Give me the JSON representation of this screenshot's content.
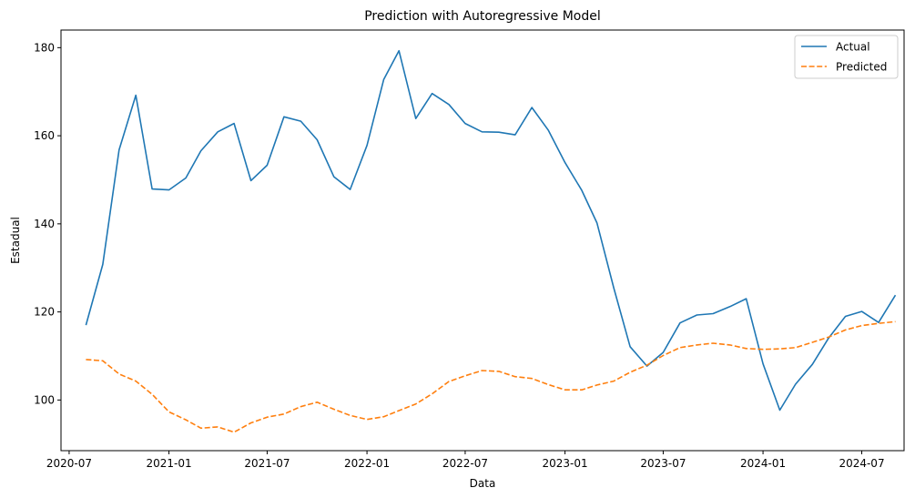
{
  "chart_data": {
    "type": "line",
    "title": "Prediction with Autoregressive Model",
    "xlabel": "Data",
    "ylabel": "Estadual",
    "grid": false,
    "legend_position": "top-right",
    "xlim": [
      "2020-06-16",
      "2024-09-17"
    ],
    "ylim": [
      88.5,
      184
    ],
    "x_ticks": [
      "2020-07-01",
      "2021-01-01",
      "2021-07-01",
      "2022-01-01",
      "2022-07-01",
      "2023-01-01",
      "2023-07-01",
      "2024-01-01",
      "2024-07-01"
    ],
    "x_tick_labels": [
      "2020-07",
      "2021-01",
      "2021-07",
      "2022-01",
      "2022-07",
      "2023-01",
      "2023-07",
      "2024-01",
      "2024-07"
    ],
    "y_ticks": [
      100,
      120,
      140,
      160,
      180
    ],
    "y_tick_labels": [
      "100",
      "120",
      "140",
      "160",
      "180"
    ],
    "x": [
      "2020-08-01",
      "2020-09-01",
      "2020-10-01",
      "2020-11-01",
      "2020-12-01",
      "2021-01-01",
      "2021-02-01",
      "2021-03-01",
      "2021-04-01",
      "2021-05-01",
      "2021-06-01",
      "2021-07-01",
      "2021-08-01",
      "2021-09-01",
      "2021-10-01",
      "2021-11-01",
      "2021-12-01",
      "2022-01-01",
      "2022-02-01",
      "2022-03-01",
      "2022-04-01",
      "2022-05-01",
      "2022-06-01",
      "2022-07-01",
      "2022-08-01",
      "2022-09-01",
      "2022-10-01",
      "2022-11-01",
      "2022-12-01",
      "2023-01-01",
      "2023-02-01",
      "2023-03-01",
      "2023-04-01",
      "2023-05-01",
      "2023-06-01",
      "2023-07-01",
      "2023-08-01",
      "2023-09-01",
      "2023-10-01",
      "2023-11-01",
      "2023-12-01",
      "2024-01-01",
      "2024-02-01",
      "2024-03-01",
      "2024-04-01",
      "2024-05-01",
      "2024-06-01",
      "2024-07-01",
      "2024-08-01",
      "2024-09-01"
    ],
    "series": [
      {
        "name": "Actual",
        "color": "#1f77b4",
        "style": "solid",
        "values": [
          117.0,
          130.8,
          156.8,
          169.2,
          147.9,
          147.7,
          150.4,
          156.6,
          160.9,
          162.8,
          149.8,
          153.3,
          164.3,
          163.3,
          159.1,
          150.7,
          147.8,
          157.8,
          172.8,
          179.3,
          163.9,
          169.6,
          167.1,
          162.8,
          160.9,
          160.8,
          160.2,
          166.4,
          161.3,
          153.9,
          147.6,
          140.2,
          125.4,
          112.1,
          107.7,
          110.8,
          117.5,
          119.3,
          119.6,
          121.2,
          123.0,
          108.2,
          97.7,
          103.6,
          108.1,
          114.1,
          119.0,
          120.1,
          117.6,
          123.8
        ]
      },
      {
        "name": "Predicted",
        "color": "#ff7f0e",
        "style": "dashed",
        "values": [
          109.2,
          108.9,
          105.9,
          104.3,
          101.3,
          97.3,
          95.5,
          93.6,
          93.9,
          92.7,
          94.8,
          96.1,
          96.8,
          98.5,
          99.5,
          97.9,
          96.5,
          95.6,
          96.2,
          97.6,
          99.1,
          101.4,
          104.2,
          105.5,
          106.7,
          106.5,
          105.3,
          104.9,
          103.5,
          102.3,
          102.3,
          103.4,
          104.3,
          106.3,
          107.9,
          110.1,
          111.9,
          112.5,
          112.9,
          112.5,
          111.7,
          111.5,
          111.6,
          111.9,
          113.1,
          114.3,
          115.9,
          116.9,
          117.4,
          117.8
        ]
      }
    ]
  }
}
